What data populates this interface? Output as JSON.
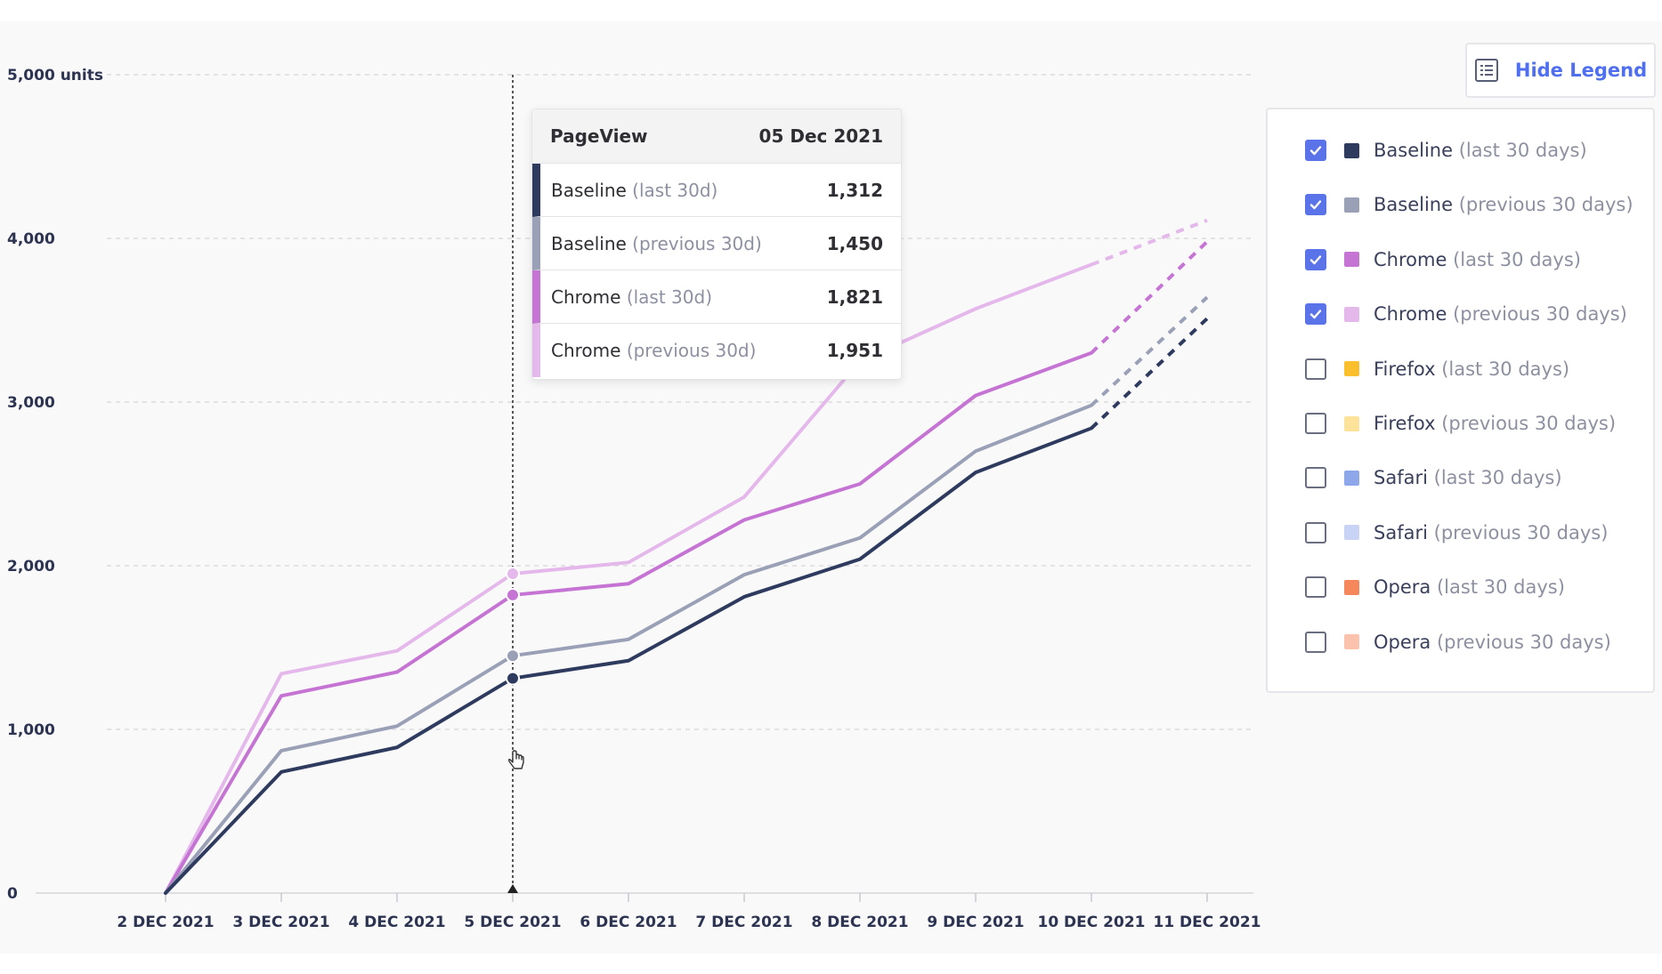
{
  "hide_legend_label": "Hide Legend",
  "tooltip": {
    "title": "PageView",
    "date": "05 Dec 2021",
    "rows": [
      {
        "name": "Baseline",
        "period": "(last 30d)",
        "value": "1,312",
        "color": "#2e3a5e"
      },
      {
        "name": "Baseline",
        "period": "(previous 30d)",
        "value": "1,450",
        "color": "#9aa0b6"
      },
      {
        "name": "Chrome",
        "period": "(last 30d)",
        "value": "1,821",
        "color": "#c574d4"
      },
      {
        "name": "Chrome",
        "period": "(previous 30d)",
        "value": "1,951",
        "color": "#e5b8ec"
      }
    ]
  },
  "legend": [
    {
      "name": "Baseline",
      "period": "(last 30 days)",
      "color": "#2e3a5e",
      "checked": true
    },
    {
      "name": "Baseline",
      "period": "(previous 30 days)",
      "color": "#9aa0b6",
      "checked": true
    },
    {
      "name": "Chrome",
      "period": "(last 30 days)",
      "color": "#c574d4",
      "checked": true
    },
    {
      "name": "Chrome",
      "period": "(previous 30 days)",
      "color": "#e5b8ec",
      "checked": true
    },
    {
      "name": "Firefox",
      "period": "(last 30 days)",
      "color": "#fbbf2e",
      "checked": false
    },
    {
      "name": "Firefox",
      "period": "(previous 30 days)",
      "color": "#fde29a",
      "checked": false
    },
    {
      "name": "Safari",
      "period": "(last 30 days)",
      "color": "#8ea6ea",
      "checked": false
    },
    {
      "name": "Safari",
      "period": "(previous 30 days)",
      "color": "#c8d3f5",
      "checked": false
    },
    {
      "name": "Opera",
      "period": "(last 30 days)",
      "color": "#f6865c",
      "checked": false
    },
    {
      "name": "Opera",
      "period": "(previous 30 days)",
      "color": "#fbc3ad",
      "checked": false
    }
  ],
  "chart_data": {
    "type": "line",
    "x": [
      "2 DEC 2021",
      "3 DEC 2021",
      "4 DEC 2021",
      "5 DEC 2021",
      "6 DEC 2021",
      "7 DEC 2021",
      "8 DEC 2021",
      "9 DEC 2021",
      "10 DEC 2021",
      "11 DEC 2021"
    ],
    "y_ticks": [
      "0",
      "1,000",
      "2,000",
      "3,000",
      "4,000",
      "5,000 units"
    ],
    "y_tick_values": [
      0,
      1000,
      2000,
      3000,
      4000,
      5000
    ],
    "ylim": [
      0,
      5000
    ],
    "grid": "horizontal dashed",
    "projected_segment": "last interval (10 DEC 2021 to 11 DEC 2021) drawn dashed",
    "highlight_index": 3,
    "series": [
      {
        "name": "Chrome (previous 30 days)",
        "color": "#e5b8ec",
        "values": [
          0,
          1340,
          1480,
          1951,
          2020,
          2420,
          3250,
          3570,
          3840,
          4110
        ]
      },
      {
        "name": "Chrome (last 30 days)",
        "color": "#c574d4",
        "values": [
          0,
          1205,
          1350,
          1821,
          1890,
          2280,
          2500,
          3040,
          3300,
          3980
        ]
      },
      {
        "name": "Baseline (previous 30 days)",
        "color": "#9aa0b6",
        "values": [
          0,
          870,
          1020,
          1450,
          1550,
          1945,
          2170,
          2700,
          2980,
          3640
        ]
      },
      {
        "name": "Baseline (last 30 days)",
        "color": "#2e3a5e",
        "values": [
          0,
          740,
          890,
          1312,
          1420,
          1810,
          2040,
          2570,
          2840,
          3510
        ]
      }
    ]
  }
}
